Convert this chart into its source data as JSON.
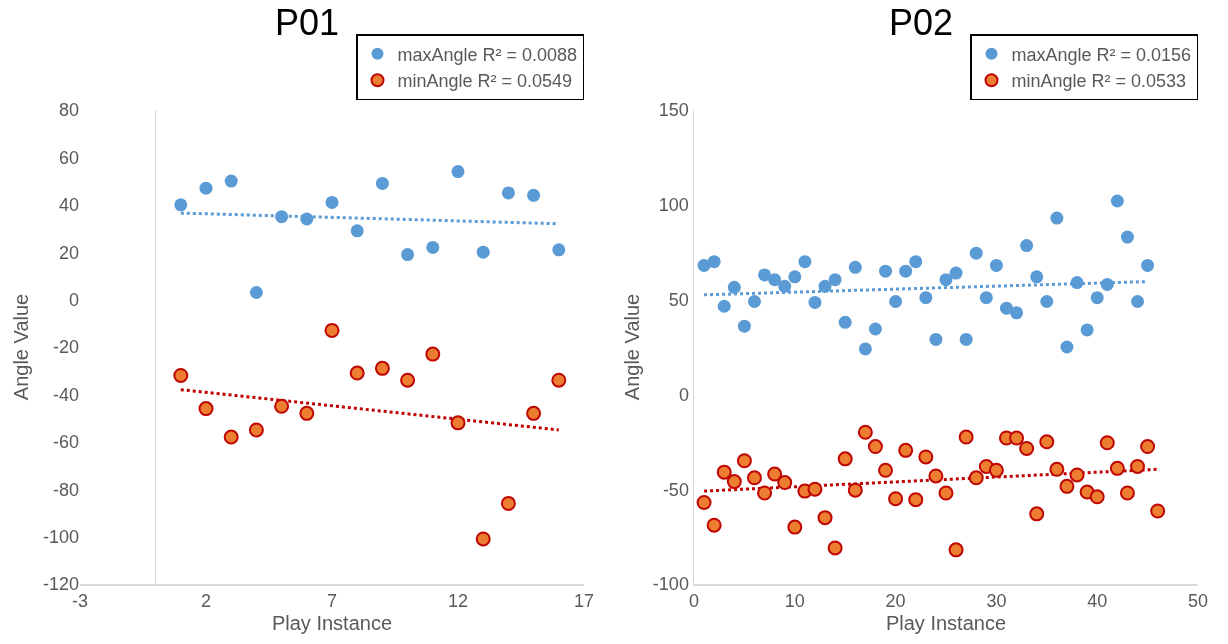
{
  "chart_data": [
    {
      "type": "scatter",
      "title": "P01",
      "xlabel": "Play Instance",
      "ylabel": "Angle Value",
      "xlim": [
        -3,
        17
      ],
      "xticks": [
        -3,
        2,
        7,
        12,
        17
      ],
      "ylim": [
        -120,
        80
      ],
      "yticks": [
        -120,
        -100,
        -80,
        -60,
        -40,
        -20,
        0,
        20,
        40,
        60,
        80
      ],
      "grid": false,
      "legend": "top right",
      "x": [
        1,
        2,
        3,
        4,
        5,
        6,
        7,
        8,
        9,
        10,
        11,
        12,
        13,
        14,
        15,
        16
      ],
      "series": [
        {
          "name": "maxAngle R² = 0.0088",
          "color": "#5b9bd5",
          "marker": "circle",
          "values": [
            40,
            47,
            50,
            3,
            35,
            34,
            41,
            29,
            49,
            19,
            22,
            54,
            20,
            45,
            44,
            21
          ]
        },
        {
          "name": "minAngle R² = 0.0549",
          "color": "#ed7d31",
          "marker": "circle",
          "values": [
            -32,
            -46,
            -58,
            -55,
            -45,
            -48,
            -13,
            -31,
            -29,
            -34,
            -23,
            -52,
            -101,
            -86,
            -48,
            -34
          ]
        },
        {
          "type": "line",
          "color": "#5b9bd5",
          "line_style": "dotted",
          "x": [
            1,
            16
          ],
          "values": [
            36.5,
            32
          ]
        },
        {
          "type": "line",
          "color": "#c00000",
          "line_style": "dotted",
          "x": [
            1,
            16
          ],
          "values": [
            -38,
            -55
          ]
        }
      ]
    },
    {
      "type": "scatter",
      "title": "P02",
      "xlabel": "Play Instance",
      "ylabel": "Angle Value",
      "xlim": [
        0,
        50
      ],
      "xticks": [
        0,
        10,
        20,
        30,
        40,
        50
      ],
      "ylim": [
        -100,
        150
      ],
      "yticks": [
        -100,
        -50,
        0,
        50,
        100,
        150
      ],
      "grid": false,
      "legend": "top right",
      "x": [
        1,
        2,
        3,
        4,
        5,
        6,
        7,
        8,
        9,
        10,
        11,
        12,
        13,
        14,
        15,
        16,
        17,
        18,
        19,
        20,
        21,
        22,
        23,
        24,
        25,
        26,
        27,
        28,
        29,
        30,
        31,
        32,
        33,
        34,
        35,
        36,
        37,
        38,
        39,
        40,
        41,
        42,
        43,
        44,
        45,
        46
      ],
      "series": [
        {
          "name": "maxAngle R² = 0.0156",
          "color": "#5b9bd5",
          "marker": "circle",
          "values": [
            68,
            70,
            46.5,
            56.5,
            36,
            49,
            63,
            60.5,
            57,
            62,
            70,
            48.5,
            57,
            60.5,
            38,
            67,
            24,
            34.5,
            65,
            49,
            65,
            70,
            51,
            29,
            60.5,
            64,
            29,
            74.5,
            51,
            68,
            45.5,
            43,
            78.5,
            62,
            49,
            93,
            25,
            59,
            34,
            51,
            58,
            102,
            83,
            49,
            68,
            null
          ]
        },
        {
          "name": "minAngle R² = 0.0533",
          "color": "#ed7d31",
          "marker": "circle",
          "values": [
            -57,
            -69,
            -41,
            -46,
            -35,
            -44,
            -52,
            -42,
            -46.5,
            -70,
            -51,
            -50,
            -65,
            -81,
            -34,
            -50.5,
            -20,
            -27.5,
            -40,
            -55,
            -29.5,
            -55.5,
            -33,
            -43,
            -52,
            -82,
            -22.5,
            -44,
            -38,
            -40,
            -23,
            -23,
            -28.5,
            -63,
            -25,
            -39.5,
            -48.5,
            -42.5,
            -51.5,
            -54,
            -25.5,
            -39,
            -52,
            -38,
            -27.5,
            -61.5
          ]
        },
        {
          "type": "line",
          "color": "#5b9bd5",
          "line_style": "dotted",
          "x": [
            1,
            45
          ],
          "values": [
            52.5,
            59.5
          ]
        },
        {
          "type": "line",
          "color": "#c00000",
          "line_style": "dotted",
          "x": [
            1,
            46
          ],
          "values": [
            -51,
            -39.5
          ]
        }
      ]
    }
  ]
}
